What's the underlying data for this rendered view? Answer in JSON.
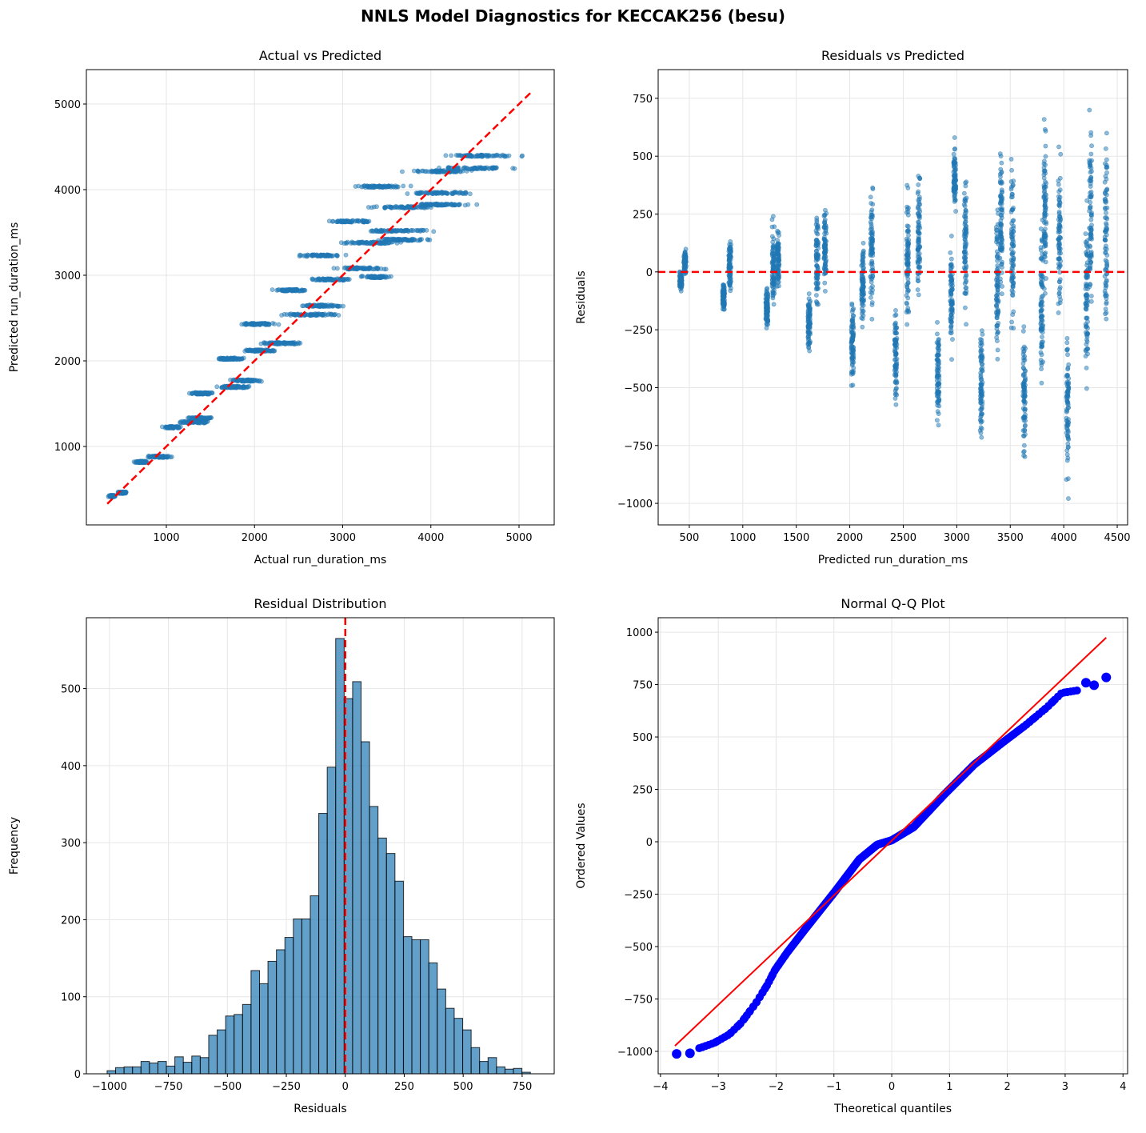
{
  "figure": {
    "title": "NNLS Model Diagnostics for KECCAK256 (besu)"
  },
  "colors": {
    "scatter": "#1f77b4",
    "reference_line": "#ff0000",
    "qq_points": "#0000ff",
    "hist_bar": "#1f77b4",
    "bar_edge": "#000000",
    "grid": "#e6e6e6"
  },
  "chart_data": [
    {
      "type": "scatter",
      "title": "Actual vs Predicted",
      "xlabel": "Actual run_duration_ms",
      "ylabel": "Predicted run_duration_ms",
      "xlim": [
        93,
        5399
      ],
      "ylim": [
        84,
        5402
      ],
      "grid": true,
      "xticks": [
        1000,
        2000,
        3000,
        4000,
        5000
      ],
      "xtick_labels": [
        "1000",
        "2000",
        "3000",
        "4000",
        "5000"
      ],
      "yticks": [
        1000,
        2000,
        3000,
        4000,
        5000
      ],
      "ytick_labels": [
        "1000",
        "2000",
        "3000",
        "4000",
        "5000"
      ],
      "reference_line": {
        "style": "dashed",
        "from": [
          330,
          330
        ],
        "to": [
          5150,
          5150
        ]
      },
      "clusters_columns": [
        "predicted",
        "actual_min",
        "actual_max"
      ],
      "clusters": [
        [
          420,
          330,
          440
        ],
        [
          460,
          430,
          570
        ],
        [
          820,
          623,
          806
        ],
        [
          880,
          756,
          1084
        ],
        [
          1225,
          935,
          1187
        ],
        [
          1285,
          1088,
          1544
        ],
        [
          1330,
          1192,
          1575
        ],
        [
          1620,
          1223,
          1582
        ],
        [
          1695,
          1460,
          2010
        ],
        [
          1770,
          1628,
          2116
        ],
        [
          2025,
          1506,
          1945
        ],
        [
          2120,
          1809,
          2303
        ],
        [
          2205,
          1987,
          2623
        ],
        [
          2430,
          1804,
          2319
        ],
        [
          2540,
          2205,
          3034
        ],
        [
          2645,
          2410,
          3150
        ],
        [
          2825,
          2120,
          2683
        ],
        [
          2950,
          2518,
          3195
        ],
        [
          2980,
          3187,
          3585
        ],
        [
          3080,
          2814,
          3616
        ],
        [
          3230,
          2428,
          3064
        ],
        [
          3380,
          2896,
          3760
        ],
        [
          3415,
          3228,
          4093
        ],
        [
          3520,
          3174,
          4111
        ],
        [
          3630,
          2752,
          3464
        ],
        [
          3795,
          3252,
          4127
        ],
        [
          3825,
          3628,
          4551
        ],
        [
          3960,
          3607,
          4589
        ],
        [
          4035,
          3022,
          3838
        ],
        [
          4215,
          3634,
          4561
        ],
        [
          4250,
          4001,
          5035
        ],
        [
          4395,
          4004,
          5149
        ]
      ]
    },
    {
      "type": "scatter",
      "title": "Residuals vs Predicted",
      "xlabel": "Predicted run_duration_ms",
      "ylabel": "Residuals",
      "xlim": [
        209,
        4597
      ],
      "ylim": [
        -1093,
        874
      ],
      "grid": true,
      "xticks": [
        500,
        1000,
        1500,
        2000,
        2500,
        3000,
        3500,
        4000,
        4500
      ],
      "xtick_labels": [
        "500",
        "1000",
        "1500",
        "2000",
        "2500",
        "3000",
        "3500",
        "4000",
        "4500"
      ],
      "yticks": [
        -1000,
        -750,
        -500,
        -250,
        0,
        250,
        500,
        750
      ],
      "ytick_labels": [
        "−1000",
        "−750",
        "−500",
        "−250",
        "0",
        "250",
        "500",
        "750"
      ],
      "reference_line": {
        "style": "dashed",
        "y": 0
      },
      "clusters_columns": [
        "predicted",
        "residual_min",
        "residual_max"
      ],
      "clusters": [
        [
          420,
          -90,
          20
        ],
        [
          460,
          -30,
          110
        ],
        [
          820,
          -197,
          -14
        ],
        [
          880,
          -124,
          204
        ],
        [
          1225,
          -290,
          -38
        ],
        [
          1285,
          -197,
          259
        ],
        [
          1330,
          -138,
          245
        ],
        [
          1620,
          -397,
          -38
        ],
        [
          1695,
          -235,
          315
        ],
        [
          1770,
          -142,
          346
        ],
        [
          2025,
          -519,
          -80
        ],
        [
          2120,
          -311,
          183
        ],
        [
          2205,
          -218,
          418
        ],
        [
          2430,
          -626,
          -111
        ],
        [
          2540,
          -335,
          494
        ],
        [
          2645,
          -235,
          505
        ],
        [
          2825,
          -705,
          -142
        ],
        [
          2950,
          -432,
          245
        ],
        [
          2980,
          207,
          605
        ],
        [
          3080,
          -266,
          536
        ],
        [
          3230,
          -802,
          -166
        ],
        [
          3380,
          -484,
          380
        ],
        [
          3415,
          -187,
          678
        ],
        [
          3520,
          -346,
          591
        ],
        [
          3630,
          -878,
          -166
        ],
        [
          3795,
          -543,
          332
        ],
        [
          3825,
          -197,
          726
        ],
        [
          3960,
          -353,
          629
        ],
        [
          4035,
          -1013,
          -197
        ],
        [
          4215,
          -581,
          346
        ],
        [
          4250,
          -249,
          785
        ],
        [
          4395,
          -391,
          754
        ]
      ]
    },
    {
      "type": "bar",
      "title": "Residual Distribution",
      "xlabel": "Residuals",
      "ylabel": "Frequency",
      "xlim": [
        -1098,
        886
      ],
      "ylim": [
        0,
        592
      ],
      "grid": true,
      "xticks": [
        -1000,
        -750,
        -500,
        -250,
        0,
        250,
        500,
        750
      ],
      "xtick_labels": [
        "−1000",
        "−750",
        "−500",
        "−250",
        "0",
        "250",
        "500",
        "750"
      ],
      "yticks": [
        0,
        100,
        200,
        300,
        400,
        500
      ],
      "ytick_labels": [
        "0",
        "100",
        "200",
        "300",
        "400",
        "500"
      ],
      "bin_start": -1010,
      "bin_width": 35.9,
      "values": [
        4,
        8,
        9,
        9,
        16,
        14,
        16,
        10,
        22,
        15,
        23,
        21,
        50,
        57,
        75,
        77,
        90,
        134,
        117,
        146,
        161,
        177,
        201,
        201,
        231,
        338,
        398,
        565,
        487,
        509,
        431,
        347,
        306,
        286,
        250,
        178,
        174,
        174,
        144,
        110,
        85,
        72,
        57,
        34,
        16,
        21,
        9,
        6,
        7,
        2
      ],
      "reference_line": {
        "style": "dashed",
        "x": 0
      }
    },
    {
      "type": "scatter",
      "title": "Normal Q-Q Plot",
      "xlabel": "Theoretical quantiles",
      "ylabel": "Ordered Values",
      "xlim": [
        -4.04,
        4.08
      ],
      "ylim": [
        -1107,
        1069
      ],
      "grid": true,
      "xticks": [
        -4,
        -3,
        -2,
        -1,
        0,
        1,
        2,
        3,
        4
      ],
      "xtick_labels": [
        "−4",
        "−3",
        "−2",
        "−1",
        "0",
        "1",
        "2",
        "3",
        "4"
      ],
      "yticks": [
        -1000,
        -750,
        -500,
        -250,
        0,
        250,
        500,
        750,
        1000
      ],
      "ytick_labels": [
        "−1000",
        "−750",
        "−500",
        "−250",
        "0",
        "250",
        "500",
        "750",
        "1000"
      ],
      "fit_line": {
        "from": [
          -3.75,
          -974
        ],
        "to": [
          3.71,
          974
        ]
      },
      "curve": [
        [
          -3.33,
          -985
        ],
        [
          -3.07,
          -960
        ],
        [
          -2.81,
          -919
        ],
        [
          -2.6,
          -863
        ],
        [
          -2.34,
          -766
        ],
        [
          -2.15,
          -682
        ],
        [
          -2.02,
          -612
        ],
        [
          -1.81,
          -529
        ],
        [
          -1.5,
          -418
        ],
        [
          -0.98,
          -237
        ],
        [
          -0.56,
          -84
        ],
        [
          -0.25,
          -14
        ],
        [
          0,
          7
        ],
        [
          0.38,
          70
        ],
        [
          0.9,
          223
        ],
        [
          1.43,
          369
        ],
        [
          1.95,
          480
        ],
        [
          2.32,
          557
        ],
        [
          2.68,
          640
        ],
        [
          2.94,
          710
        ],
        [
          3.26,
          724
        ]
      ],
      "outlier_points": [
        [
          -3.72,
          -1012
        ],
        [
          -3.49,
          -1009
        ],
        [
          3.36,
          759
        ],
        [
          3.5,
          747
        ],
        [
          3.71,
          784
        ]
      ]
    }
  ]
}
